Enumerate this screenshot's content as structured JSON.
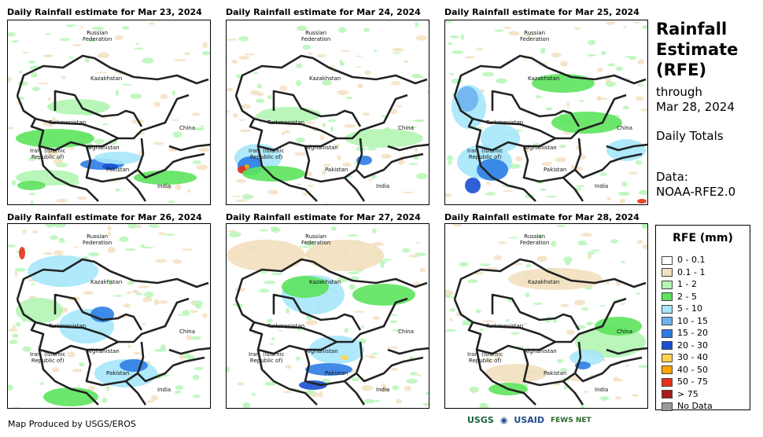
{
  "panels": [
    {
      "title": "Daily Rainfall estimate for Mar 23, 2024",
      "blobs": [
        [
          "#5de35d",
          60,
          150,
          50,
          12
        ],
        [
          "#b3f5b3",
          90,
          110,
          40,
          10
        ],
        [
          "#2d7de6",
          120,
          183,
          28,
          7
        ],
        [
          "#a6e7fb",
          140,
          175,
          30,
          8
        ],
        [
          "#1a4fd1",
          130,
          186,
          10,
          4
        ],
        [
          "#5de35d",
          200,
          200,
          40,
          9
        ],
        [
          "#b3f5b3",
          50,
          200,
          40,
          10
        ],
        [
          "#5de35d",
          30,
          210,
          18,
          6
        ]
      ]
    },
    {
      "title": "Daily Rainfall estimate for Mar 24, 2024",
      "blobs": [
        [
          "#a6e7fb",
          40,
          175,
          30,
          18
        ],
        [
          "#2d7de6",
          30,
          185,
          16,
          12
        ],
        [
          "#e63217",
          20,
          190,
          6,
          5
        ],
        [
          "#ffa500",
          26,
          186,
          3,
          3
        ],
        [
          "#5de35d",
          60,
          195,
          40,
          10
        ],
        [
          "#b3f5b3",
          200,
          150,
          50,
          12
        ],
        [
          "#2d7de6",
          175,
          178,
          10,
          6
        ],
        [
          "#b3f5b3",
          80,
          120,
          40,
          10
        ]
      ]
    },
    {
      "title": "Daily Rainfall estimate for Mar 25, 2024",
      "blobs": [
        [
          "#a6e7fb",
          30,
          110,
          22,
          28
        ],
        [
          "#6fb2ef",
          28,
          100,
          14,
          16
        ],
        [
          "#a6e7fb",
          50,
          180,
          35,
          22
        ],
        [
          "#2d7de6",
          60,
          190,
          20,
          14
        ],
        [
          "#a6e7fb",
          70,
          150,
          25,
          18
        ],
        [
          "#1a4fd1",
          35,
          210,
          10,
          10
        ],
        [
          "#5de35d",
          180,
          130,
          45,
          14
        ],
        [
          "#5de35d",
          150,
          80,
          40,
          12
        ],
        [
          "#e63217",
          250,
          230,
          6,
          3
        ],
        [
          "#a6e7fb",
          230,
          165,
          25,
          14
        ]
      ]
    },
    {
      "title": "Daily Rainfall estimate for Mar 26, 2024",
      "blobs": [
        [
          "#a6e7fb",
          70,
          60,
          45,
          20
        ],
        [
          "#e63217",
          18,
          37,
          4,
          8
        ],
        [
          "#a6e7fb",
          100,
          130,
          35,
          22
        ],
        [
          "#2d7de6",
          120,
          115,
          15,
          10
        ],
        [
          "#a6e7fb",
          150,
          190,
          40,
          18
        ],
        [
          "#2d7de6",
          160,
          180,
          18,
          8
        ],
        [
          "#5de35d",
          80,
          220,
          35,
          12
        ],
        [
          "#b3f5b3",
          40,
          110,
          30,
          16
        ]
      ]
    },
    {
      "title": "Daily Rainfall estimate for Mar 27, 2024",
      "blobs": [
        [
          "#a6e7fb",
          110,
          90,
          40,
          25
        ],
        [
          "#5de35d",
          100,
          80,
          30,
          14
        ],
        [
          "#a6e7fb",
          140,
          160,
          35,
          18
        ],
        [
          "#2d7de6",
          130,
          185,
          30,
          8
        ],
        [
          "#1a4fd1",
          110,
          205,
          18,
          6
        ],
        [
          "#ffd24d",
          150,
          170,
          5,
          3
        ],
        [
          "#f2dfbe",
          50,
          40,
          50,
          20
        ],
        [
          "#f2dfbe",
          150,
          40,
          50,
          20
        ],
        [
          "#5de35d",
          200,
          90,
          40,
          14
        ]
      ]
    },
    {
      "title": "Daily Rainfall estimate for Mar 28, 2024",
      "blobs": [
        [
          "#b3f5b3",
          210,
          150,
          45,
          20
        ],
        [
          "#5de35d",
          220,
          130,
          30,
          12
        ],
        [
          "#a6e7fb",
          180,
          170,
          22,
          10
        ],
        [
          "#2d7de6",
          175,
          180,
          10,
          5
        ],
        [
          "#f2dfbe",
          140,
          70,
          60,
          14
        ],
        [
          "#f2dfbe",
          90,
          190,
          40,
          12
        ],
        [
          "#5de35d",
          80,
          210,
          25,
          8
        ]
      ]
    }
  ],
  "map_labels": {
    "russia": "Russian\nFederation",
    "kazakhstan": "Kazakhstan",
    "turkmenistan": "Turkmenistan",
    "china": "China",
    "iran": "Iran  (Islamic\nRepublic of)",
    "afghanistan": "Afghanistan",
    "pakistan": "Pakistan",
    "india": "India"
  },
  "side": {
    "title_line1": "Rainfall",
    "title_line2": "Estimate",
    "title_line3": "(RFE)",
    "through": "through",
    "date": "Mar 28, 2024",
    "totals": "Daily Totals",
    "data_label": "Data:",
    "data_source": "NOAA-RFE2.0"
  },
  "legend": {
    "title": "RFE (mm)",
    "items": [
      {
        "label": "0 - 0.1",
        "color": "#ffffff"
      },
      {
        "label": "0.1 - 1",
        "color": "#f2dfbe"
      },
      {
        "label": "1 - 2",
        "color": "#b3f5b3"
      },
      {
        "label": "2 - 5",
        "color": "#5de35d"
      },
      {
        "label": "5 - 10",
        "color": "#a6e7fb"
      },
      {
        "label": "10 - 15",
        "color": "#6fb2ef"
      },
      {
        "label": "15 - 20",
        "color": "#2d7de6"
      },
      {
        "label": "20 - 30",
        "color": "#1a4fd1"
      },
      {
        "label": "30 - 40",
        "color": "#ffd24d"
      },
      {
        "label": "40 - 50",
        "color": "#ffa500"
      },
      {
        "label": "50 - 75",
        "color": "#e63217"
      },
      {
        "label": "> 75",
        "color": "#a61c1c"
      },
      {
        "label": "No Data",
        "color": "#999999"
      }
    ]
  },
  "footer": "Map Produced by USGS/EROS",
  "logos": {
    "usgs": "USGS",
    "usaid": "USAID",
    "fews": "FEWS NET"
  }
}
